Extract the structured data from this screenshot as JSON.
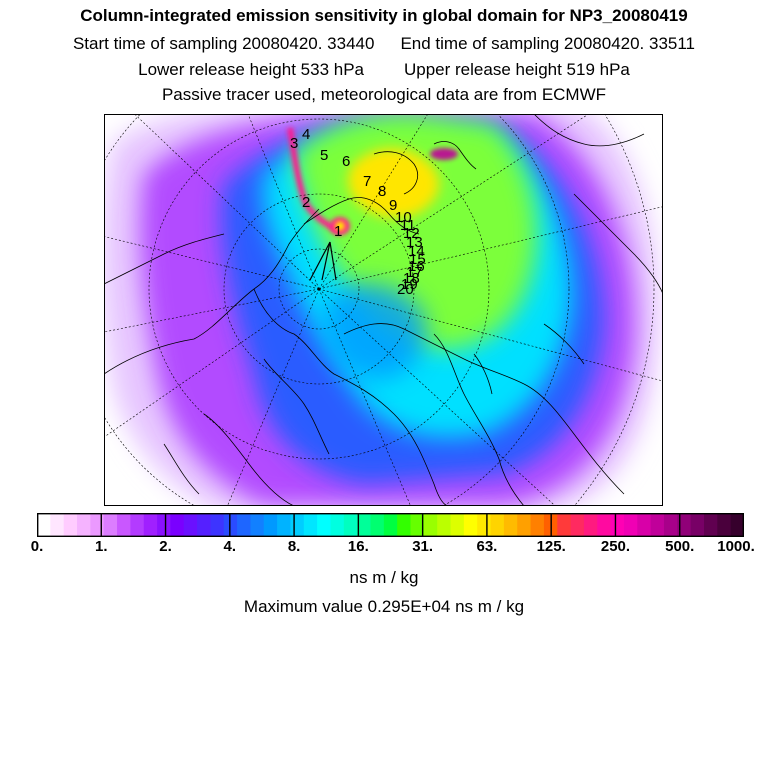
{
  "header": {
    "title": "Column-integrated emission sensitivity in global domain for NP3_20080419",
    "start_time": "Start time of sampling 20080420. 33440",
    "end_time": "End time of sampling 20080420. 33511",
    "lower_release": "Lower release height  533 hPa",
    "upper_release": "Upper release height  519 hPa",
    "note": "Passive tracer used, meteorological data are from ECMWF"
  },
  "map": {
    "trajectory_labels": [
      "1",
      "2",
      "3",
      "4",
      "5",
      "6",
      "7",
      "8",
      "9",
      "10",
      "11",
      "12",
      "13",
      "14",
      "15",
      "16",
      "17",
      "18",
      "19",
      "20"
    ],
    "colors": {
      "background": "#b24cff",
      "blue": "#2a5bff",
      "cyan": "#00e0ff",
      "green": "#7cff3a",
      "yellow": "#ffe600",
      "peak": "#ff1f8e"
    }
  },
  "colorbar": {
    "tick_labels": [
      "0.",
      "1.",
      "2.",
      "4.",
      "8.",
      "16.",
      "31.",
      "63.",
      "125.",
      "250.",
      "500.",
      "1000."
    ],
    "colors": [
      "#ffffff",
      "#ffe6ff",
      "#ffccff",
      "#f5b3ff",
      "#eb99ff",
      "#dc7dff",
      "#c957ff",
      "#b33bff",
      "#a020ff",
      "#8a10ff",
      "#7a00ff",
      "#6a10ff",
      "#5520ff",
      "#3d34ff",
      "#2a4cff",
      "#1e66ff",
      "#1280ff",
      "#0099ff",
      "#00b3ff",
      "#00cdff",
      "#00e6ff",
      "#00ffff",
      "#00ffe0",
      "#00ffc0",
      "#00ff99",
      "#00ff70",
      "#00ff40",
      "#33ff00",
      "#66ff00",
      "#99ff00",
      "#bbff00",
      "#ddff00",
      "#ffff00",
      "#ffea00",
      "#ffd400",
      "#ffbb00",
      "#ffa000",
      "#ff8000",
      "#ff6000",
      "#ff3a3a",
      "#ff2a60",
      "#ff1a80",
      "#ff0aa0",
      "#ff00b4",
      "#f000b4",
      "#d800a8",
      "#c0009a",
      "#a8008a",
      "#900078",
      "#780066",
      "#600050",
      "#4a003c",
      "#36002c"
    ],
    "unit": "ns m / kg",
    "max_value": "Maximum value  0.295E+04 ns m / kg"
  }
}
